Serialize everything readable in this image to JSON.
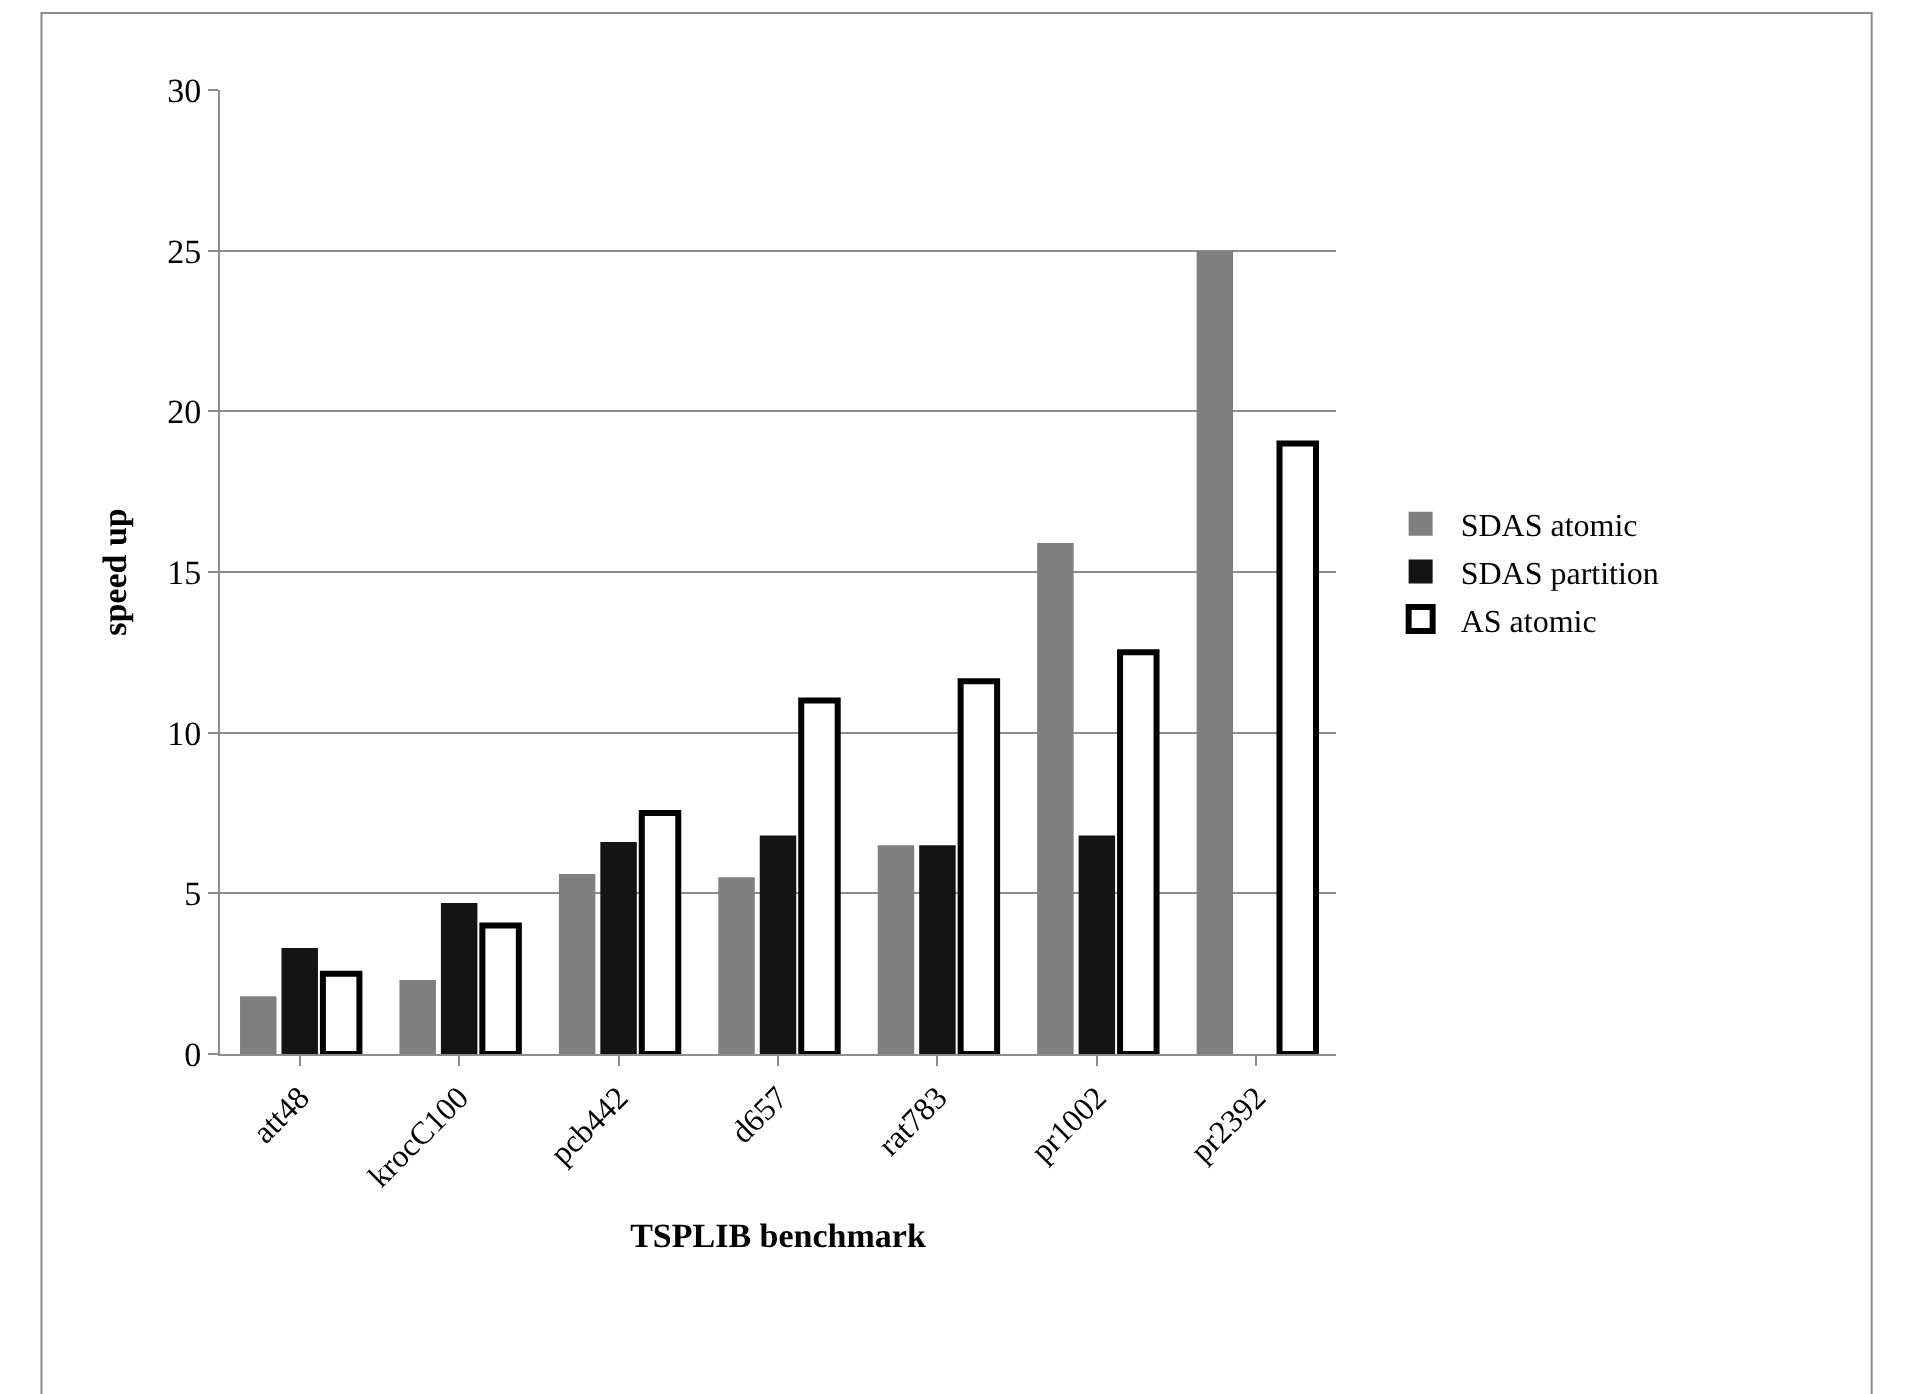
{
  "chart_data": {
    "type": "bar",
    "xlabel": "TSPLIB benchmark",
    "ylabel": "speed up",
    "categories": [
      "att48",
      "krocC100",
      "pcb442",
      "d657",
      "rat783",
      "pr1002",
      "pr2392"
    ],
    "series": [
      {
        "name": "SDAS atomic",
        "color": "#7f7f7f",
        "values": [
          1.8,
          2.3,
          5.6,
          5.5,
          6.5,
          15.9,
          25.0
        ]
      },
      {
        "name": "SDAS partition",
        "color": "#141414",
        "values": [
          3.3,
          4.7,
          6.6,
          6.8,
          6.5,
          6.8,
          null
        ]
      },
      {
        "name": "AS atomic",
        "color": "#ffffff",
        "values": [
          2.5,
          4.0,
          7.5,
          11.0,
          11.6,
          12.5,
          19.0
        ]
      }
    ],
    "ylim": [
      0,
      30
    ],
    "yticks": [
      0,
      5,
      10,
      15,
      20,
      25,
      30
    ],
    "grid": "y",
    "legend": "right"
  }
}
